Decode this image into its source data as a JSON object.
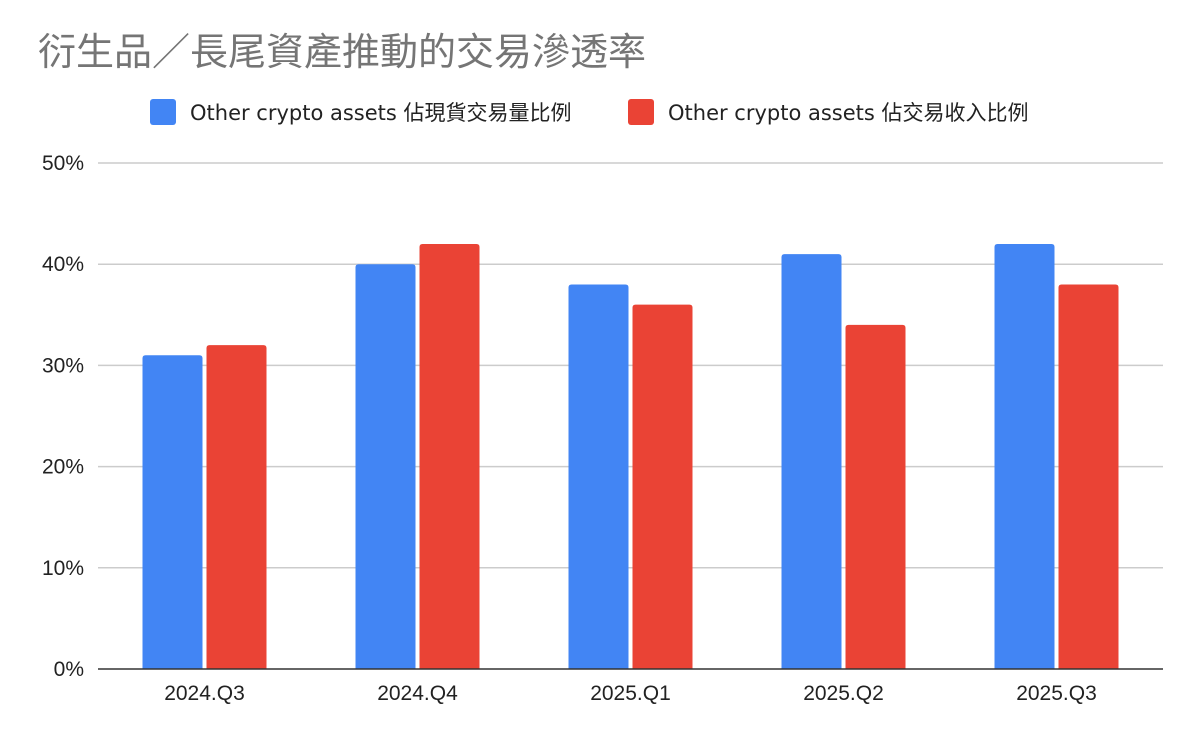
{
  "chart_data": {
    "type": "bar",
    "title": "衍生品／長尾資產推動的交易滲透率",
    "categories": [
      "2024.Q3",
      "2024.Q4",
      "2025.Q1",
      "2025.Q2",
      "2025.Q3"
    ],
    "series": [
      {
        "name": "Other crypto assets 佔現貨交易量比例",
        "values": [
          31,
          40,
          38,
          41,
          42
        ],
        "color": "#4285F4"
      },
      {
        "name": "Other crypto assets 佔交易收入比例",
        "values": [
          32,
          42,
          36,
          34,
          38
        ],
        "color": "#EA4335"
      }
    ],
    "y_ticks": [
      "0%",
      "10%",
      "20%",
      "30%",
      "40%",
      "50%"
    ],
    "ylim": [
      0,
      50
    ],
    "grid": true,
    "legend_position": "top-center"
  }
}
